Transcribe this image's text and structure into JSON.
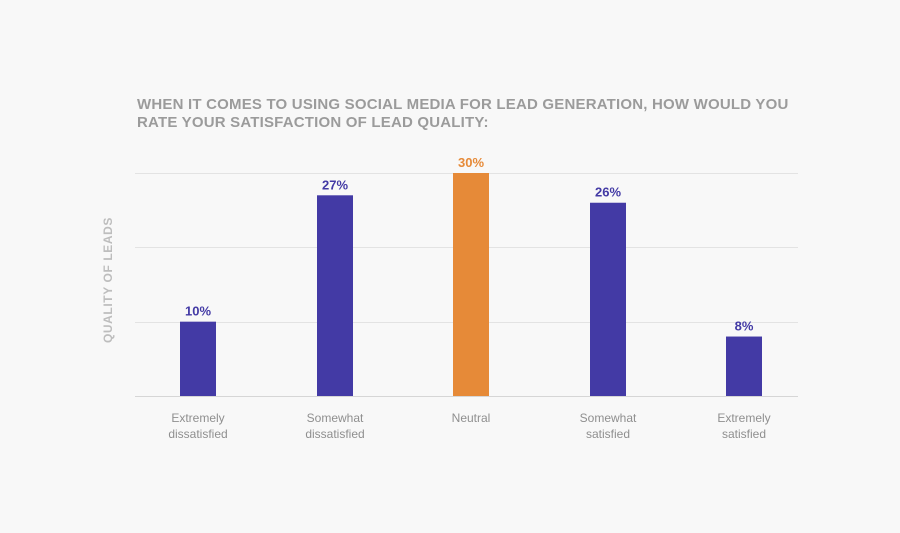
{
  "chart_data": {
    "type": "bar",
    "title": "WHEN IT COMES TO USING SOCIAL MEDIA FOR LEAD GENERATION, HOW WOULD YOU RATE YOUR SATISFACTION OF LEAD QUALITY:",
    "ylabel": "QUALITY OF LEADS",
    "xlabel": "",
    "ylim": [
      0,
      30
    ],
    "grid": true,
    "categories": [
      [
        "Extremely",
        "dissatisfied"
      ],
      [
        "Somewhat",
        "dissatisfied"
      ],
      [
        "Neutral"
      ],
      [
        "Somewhat",
        "satisfied"
      ],
      [
        "Extremely",
        "satisfied"
      ]
    ],
    "values": [
      10,
      27,
      30,
      26,
      8
    ],
    "value_labels": [
      "10%",
      "27%",
      "30%",
      "26%",
      "8%"
    ],
    "highlight_index": 2,
    "colors": {
      "bar": "#433aa5",
      "highlight": "#e68a38"
    }
  }
}
